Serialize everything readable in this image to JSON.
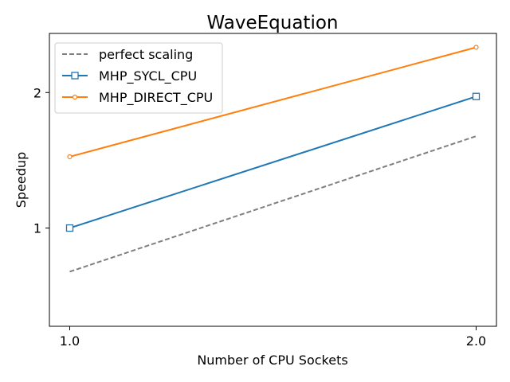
{
  "chart_data": {
    "type": "line",
    "title": "WaveEquation",
    "xlabel": "Number of CPU Sockets",
    "ylabel": "Speedup",
    "x": [
      1.0,
      2.0
    ],
    "xticks": [
      "1.0",
      "2.0"
    ],
    "yticks": [
      "1",
      "2"
    ],
    "xlim": [
      0.95,
      2.05
    ],
    "ylim": [
      0.605,
      2.706
    ],
    "log_y": true,
    "grid": false,
    "legend_position": "top-left",
    "series": [
      {
        "name": "perfect scaling",
        "values": [
          0.8,
          1.6
        ],
        "color": "#7f7f7f",
        "style": "dashed",
        "marker": "none"
      },
      {
        "name": "MHP_SYCL_CPU",
        "values": [
          1.0,
          1.96
        ],
        "color": "#1f77b4",
        "style": "solid",
        "marker": "square"
      },
      {
        "name": "MHP_DIRECT_CPU",
        "values": [
          1.44,
          2.52
        ],
        "color": "#ff7f0e",
        "style": "solid",
        "marker": "circle"
      }
    ]
  }
}
